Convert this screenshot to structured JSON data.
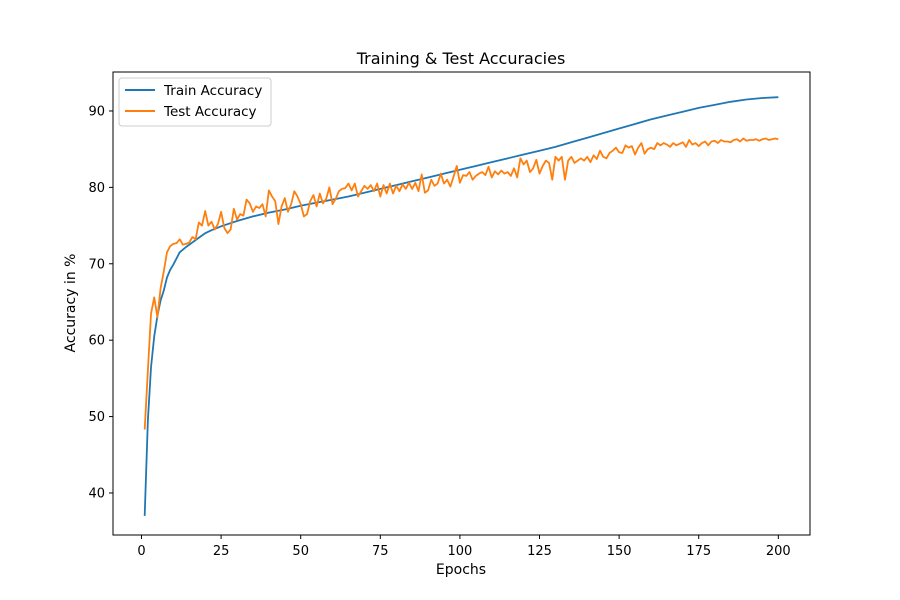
{
  "chart_data": {
    "type": "line",
    "title": "Training & Test Accuracies",
    "xlabel": "Epochs",
    "ylabel": "Accuracy in %",
    "xlim": [
      -8.95,
      209.95
    ],
    "ylim": [
      34.5,
      95.1
    ],
    "xticks": [
      0,
      25,
      50,
      75,
      100,
      125,
      150,
      175,
      200
    ],
    "yticks": [
      40,
      50,
      60,
      70,
      80,
      90
    ],
    "grid": false,
    "legend_position": "upper-left",
    "series": [
      {
        "name": "Train Accuracy",
        "color": "#1f77b4",
        "points": [
          [
            1,
            37.0
          ],
          [
            2,
            49.5
          ],
          [
            3,
            56.5
          ],
          [
            4,
            60.5
          ],
          [
            5,
            63.2
          ],
          [
            6,
            65.2
          ],
          [
            7,
            66.5
          ],
          [
            8,
            68.2
          ],
          [
            9,
            69.2
          ],
          [
            10,
            69.9
          ],
          [
            12,
            71.5
          ],
          [
            14,
            72.2
          ],
          [
            16,
            72.8
          ],
          [
            18,
            73.4
          ],
          [
            20,
            74.0
          ],
          [
            22,
            74.4
          ],
          [
            25,
            74.9
          ],
          [
            30,
            75.6
          ],
          [
            35,
            76.2
          ],
          [
            40,
            76.7
          ],
          [
            45,
            77.1
          ],
          [
            50,
            77.6
          ],
          [
            55,
            78.0
          ],
          [
            60,
            78.4
          ],
          [
            65,
            78.8
          ],
          [
            70,
            79.3
          ],
          [
            75,
            79.8
          ],
          [
            80,
            80.3
          ],
          [
            85,
            80.8
          ],
          [
            90,
            81.3
          ],
          [
            95,
            81.8
          ],
          [
            100,
            82.3
          ],
          [
            105,
            82.8
          ],
          [
            110,
            83.3
          ],
          [
            115,
            83.8
          ],
          [
            120,
            84.3
          ],
          [
            125,
            84.8
          ],
          [
            130,
            85.3
          ],
          [
            135,
            85.9
          ],
          [
            140,
            86.5
          ],
          [
            145,
            87.1
          ],
          [
            150,
            87.7
          ],
          [
            155,
            88.3
          ],
          [
            160,
            88.9
          ],
          [
            165,
            89.4
          ],
          [
            170,
            89.9
          ],
          [
            175,
            90.4
          ],
          [
            180,
            90.8
          ],
          [
            185,
            91.2
          ],
          [
            190,
            91.5
          ],
          [
            195,
            91.7
          ],
          [
            200,
            91.8
          ]
        ]
      },
      {
        "name": "Test Accuracy",
        "color": "#ff7f0e",
        "points": [
          [
            1,
            48.3
          ],
          [
            2,
            56.0
          ],
          [
            3,
            63.5
          ],
          [
            4,
            65.6
          ],
          [
            5,
            63.0
          ],
          [
            6,
            66.8
          ],
          [
            7,
            69.0
          ],
          [
            8,
            71.5
          ],
          [
            9,
            72.3
          ],
          [
            10,
            72.6
          ],
          [
            11,
            72.7
          ],
          [
            12,
            73.2
          ],
          [
            13,
            72.5
          ],
          [
            14,
            72.6
          ],
          [
            15,
            72.8
          ],
          [
            16,
            73.5
          ],
          [
            17,
            73.2
          ],
          [
            18,
            75.4
          ],
          [
            19,
            75.0
          ],
          [
            20,
            76.9
          ],
          [
            21,
            75.0
          ],
          [
            22,
            75.5
          ],
          [
            23,
            74.5
          ],
          [
            24,
            75.2
          ],
          [
            25,
            76.8
          ],
          [
            26,
            74.7
          ],
          [
            27,
            74.0
          ],
          [
            28,
            74.5
          ],
          [
            29,
            77.2
          ],
          [
            30,
            75.8
          ],
          [
            31,
            76.5
          ],
          [
            32,
            76.3
          ],
          [
            33,
            78.4
          ],
          [
            34,
            77.9
          ],
          [
            35,
            76.8
          ],
          [
            36,
            77.5
          ],
          [
            37,
            77.3
          ],
          [
            38,
            77.8
          ],
          [
            39,
            76.2
          ],
          [
            40,
            79.6
          ],
          [
            41,
            78.8
          ],
          [
            42,
            78.2
          ],
          [
            43,
            75.2
          ],
          [
            44,
            77.5
          ],
          [
            45,
            78.6
          ],
          [
            46,
            76.8
          ],
          [
            47,
            77.8
          ],
          [
            48,
            79.5
          ],
          [
            49,
            78.8
          ],
          [
            50,
            77.8
          ],
          [
            51,
            76.2
          ],
          [
            52,
            76.5
          ],
          [
            53,
            78.2
          ],
          [
            54,
            79.0
          ],
          [
            55,
            77.5
          ],
          [
            56,
            79.2
          ],
          [
            57,
            77.9
          ],
          [
            58,
            78.5
          ],
          [
            59,
            80.0
          ],
          [
            60,
            77.8
          ],
          [
            61,
            78.5
          ],
          [
            62,
            79.5
          ],
          [
            63,
            79.8
          ],
          [
            64,
            79.9
          ],
          [
            65,
            80.5
          ],
          [
            66,
            79.6
          ],
          [
            67,
            80.5
          ],
          [
            68,
            78.8
          ],
          [
            69,
            79.5
          ],
          [
            70,
            80.2
          ],
          [
            71,
            79.8
          ],
          [
            72,
            80.3
          ],
          [
            73,
            79.5
          ],
          [
            74,
            80.5
          ],
          [
            75,
            78.8
          ],
          [
            76,
            80.3
          ],
          [
            77,
            79.2
          ],
          [
            78,
            80.5
          ],
          [
            79,
            79.2
          ],
          [
            80,
            80.2
          ],
          [
            81,
            79.5
          ],
          [
            82,
            80.4
          ],
          [
            83,
            79.8
          ],
          [
            84,
            80.6
          ],
          [
            85,
            79.8
          ],
          [
            86,
            80.6
          ],
          [
            87,
            79.5
          ],
          [
            88,
            81.7
          ],
          [
            89,
            79.3
          ],
          [
            90,
            79.6
          ],
          [
            91,
            81.0
          ],
          [
            92,
            80.2
          ],
          [
            93,
            80.5
          ],
          [
            94,
            81.8
          ],
          [
            95,
            80.5
          ],
          [
            96,
            81.0
          ],
          [
            97,
            80.1
          ],
          [
            98,
            81.4
          ],
          [
            99,
            82.8
          ],
          [
            100,
            80.6
          ],
          [
            101,
            81.6
          ],
          [
            102,
            81.5
          ],
          [
            103,
            82.0
          ],
          [
            104,
            81.0
          ],
          [
            105,
            81.5
          ],
          [
            106,
            81.8
          ],
          [
            107,
            82.0
          ],
          [
            108,
            81.6
          ],
          [
            109,
            82.7
          ],
          [
            110,
            81.3
          ],
          [
            111,
            82.1
          ],
          [
            112,
            81.7
          ],
          [
            113,
            82.2
          ],
          [
            114,
            81.8
          ],
          [
            115,
            82.0
          ],
          [
            116,
            81.5
          ],
          [
            117,
            82.5
          ],
          [
            118,
            81.3
          ],
          [
            119,
            83.8
          ],
          [
            120,
            83.0
          ],
          [
            121,
            83.5
          ],
          [
            122,
            82.0
          ],
          [
            123,
            82.5
          ],
          [
            124,
            83.6
          ],
          [
            125,
            81.8
          ],
          [
            126,
            82.8
          ],
          [
            127,
            83.5
          ],
          [
            128,
            83.2
          ],
          [
            129,
            81.0
          ],
          [
            130,
            84.0
          ],
          [
            131,
            83.5
          ],
          [
            132,
            84.0
          ],
          [
            133,
            81.0
          ],
          [
            134,
            83.5
          ],
          [
            135,
            84.0
          ],
          [
            136,
            83.2
          ],
          [
            137,
            83.5
          ],
          [
            138,
            83.8
          ],
          [
            139,
            83.5
          ],
          [
            140,
            84.0
          ],
          [
            141,
            83.3
          ],
          [
            142,
            84.2
          ],
          [
            143,
            83.7
          ],
          [
            144,
            84.8
          ],
          [
            145,
            84.0
          ],
          [
            146,
            83.8
          ],
          [
            147,
            84.5
          ],
          [
            148,
            84.8
          ],
          [
            149,
            85.2
          ],
          [
            150,
            84.6
          ],
          [
            151,
            84.5
          ],
          [
            152,
            85.5
          ],
          [
            153,
            85.2
          ],
          [
            154,
            85.4
          ],
          [
            155,
            84.3
          ],
          [
            156,
            85.2
          ],
          [
            157,
            85.8
          ],
          [
            158,
            84.4
          ],
          [
            159,
            85.0
          ],
          [
            160,
            85.2
          ],
          [
            161,
            85.0
          ],
          [
            162,
            85.8
          ],
          [
            163,
            85.5
          ],
          [
            164,
            85.8
          ],
          [
            165,
            85.6
          ],
          [
            166,
            85.3
          ],
          [
            167,
            85.8
          ],
          [
            168,
            85.5
          ],
          [
            169,
            85.7
          ],
          [
            170,
            85.9
          ],
          [
            171,
            85.3
          ],
          [
            172,
            86.2
          ],
          [
            173,
            85.6
          ],
          [
            174,
            85.8
          ],
          [
            175,
            85.4
          ],
          [
            176,
            85.8
          ],
          [
            177,
            86.0
          ],
          [
            178,
            85.5
          ],
          [
            179,
            86.0
          ],
          [
            180,
            86.1
          ],
          [
            181,
            85.8
          ],
          [
            182,
            86.2
          ],
          [
            183,
            86.0
          ],
          [
            184,
            86.0
          ],
          [
            185,
            85.9
          ],
          [
            186,
            86.2
          ],
          [
            187,
            86.3
          ],
          [
            188,
            86.0
          ],
          [
            189,
            86.4
          ],
          [
            190,
            86.1
          ],
          [
            191,
            86.2
          ],
          [
            192,
            86.2
          ],
          [
            193,
            86.3
          ],
          [
            194,
            86.1
          ],
          [
            195,
            86.3
          ],
          [
            196,
            86.4
          ],
          [
            197,
            86.2
          ],
          [
            198,
            86.3
          ],
          [
            199,
            86.4
          ],
          [
            200,
            86.3
          ]
        ]
      }
    ]
  }
}
